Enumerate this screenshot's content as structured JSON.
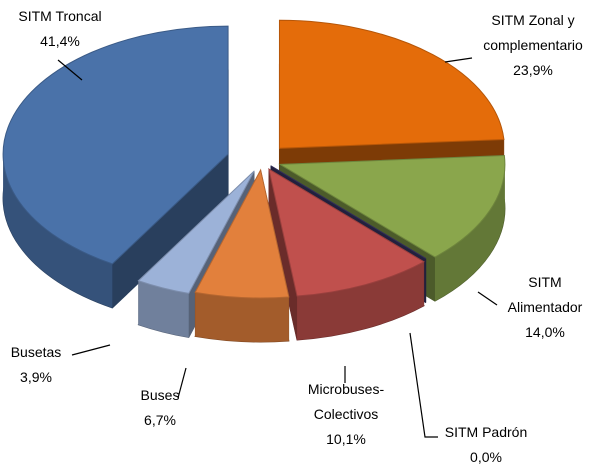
{
  "chart_data": {
    "type": "pie3d",
    "categories": [
      "SITM Zonal y complementario",
      "SITM Alimentador",
      "SITM Padrón",
      "Microbuses-Colectivos",
      "Buses",
      "Busetas",
      "SITM Troncal"
    ],
    "values": [
      23.9,
      14.0,
      0.0,
      10.1,
      6.7,
      3.9,
      41.4
    ],
    "value_labels": [
      "23,9%",
      "14,0%",
      "0,0%",
      "10,1%",
      "6,7%",
      "3,9%",
      "41,4%"
    ],
    "colors": [
      "#e46c0a",
      "#8aa64c",
      "#3d3a6e",
      "#c0504d",
      "#e2803c",
      "#9cb2d8",
      "#4a72a9"
    ]
  }
}
